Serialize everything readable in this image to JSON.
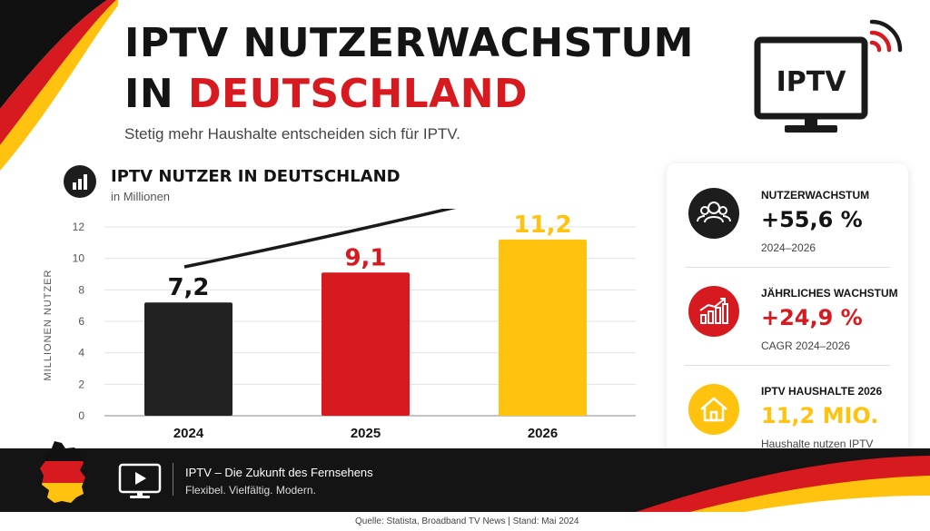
{
  "header": {
    "title_line1": "IPTV NUTZERWACHSTUM",
    "title_line2_prefix": "IN ",
    "title_line2_highlight": "DEUTSCHLAND",
    "subtitle": "Stetig mehr Haushalte entscheiden sich für IPTV."
  },
  "tv_badge": {
    "label": "IPTV",
    "icon": "tv-icon"
  },
  "chart_data": {
    "type": "bar",
    "title": "IPTV NUTZER IN DEUTSCHLAND",
    "subtitle": "in Millionen",
    "ylabel": "MILLIONEN NUTZER",
    "xlabel": "",
    "categories": [
      "2024",
      "2025",
      "2026"
    ],
    "values": [
      7.2,
      9.1,
      11.2
    ],
    "value_labels": [
      "7,2",
      "9,1",
      "11,2"
    ],
    "colors": [
      "#222222",
      "#d71a1f",
      "#ffc20e"
    ],
    "label_colors": [
      "#141414",
      "#d71a1f",
      "#ffc20e"
    ],
    "ylim": [
      0,
      12
    ],
    "yticks": [
      0,
      2,
      4,
      6,
      8,
      10,
      12
    ],
    "grid": true,
    "trend_arrow": true
  },
  "stats": [
    {
      "label": "NUTZERWACHSTUM",
      "value": "+55,6 %",
      "sub": "2024–2026",
      "value_color": "#141414",
      "circle_color": "#1d1d1d",
      "icon": "users-icon"
    },
    {
      "label": "JÄHRLICHES WACHSTUM",
      "value": "+24,9 %",
      "sub": "CAGR 2024–2026",
      "value_color": "#d71a1f",
      "circle_color": "#d71a1f",
      "icon": "growth-chart-icon"
    },
    {
      "label": "IPTV HAUSHALTE 2026",
      "value": "11,2 MIO.",
      "sub": "Haushalte nutzen IPTV",
      "value_color": "#ffc20e",
      "circle_color": "#ffc20e",
      "icon": "house-icon"
    }
  ],
  "footer": {
    "title": "IPTV – Die Zukunft des Fernsehens",
    "tagline": "Flexibel. Vielfältig. Modern.",
    "source": "Quelle: Statista, Broadband TV News   |   Stand: Mai 2024"
  },
  "colors": {
    "black": "#141414",
    "red": "#d71a1f",
    "gold": "#ffc20e"
  }
}
